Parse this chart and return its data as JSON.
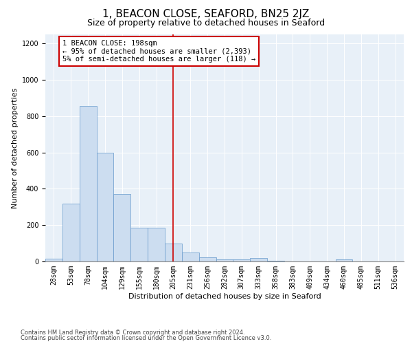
{
  "title": "1, BEACON CLOSE, SEAFORD, BN25 2JZ",
  "subtitle": "Size of property relative to detached houses in Seaford",
  "xlabel": "Distribution of detached houses by size in Seaford",
  "ylabel": "Number of detached properties",
  "bar_labels": [
    "28sqm",
    "53sqm",
    "78sqm",
    "104sqm",
    "129sqm",
    "155sqm",
    "180sqm",
    "205sqm",
    "231sqm",
    "256sqm",
    "282sqm",
    "307sqm",
    "333sqm",
    "358sqm",
    "383sqm",
    "409sqm",
    "434sqm",
    "460sqm",
    "485sqm",
    "511sqm",
    "536sqm"
  ],
  "bar_values": [
    15,
    320,
    855,
    600,
    370,
    185,
    185,
    100,
    50,
    22,
    13,
    13,
    18,
    5,
    0,
    0,
    0,
    12,
    0,
    0,
    0
  ],
  "bar_color": "#ccddf0",
  "bar_edge_color": "#6699cc",
  "vline_x_index": 7,
  "vline_color": "#cc0000",
  "annotation_text": "1 BEACON CLOSE: 198sqm\n← 95% of detached houses are smaller (2,393)\n5% of semi-detached houses are larger (118) →",
  "annotation_box_color": "#ffffff",
  "annotation_box_edge": "#cc0000",
  "ylim": [
    0,
    1250
  ],
  "yticks": [
    0,
    200,
    400,
    600,
    800,
    1000,
    1200
  ],
  "footnote1": "Contains HM Land Registry data © Crown copyright and database right 2024.",
  "footnote2": "Contains public sector information licensed under the Open Government Licence v3.0.",
  "bg_color": "#e8f0f8",
  "title_fontsize": 11,
  "subtitle_fontsize": 9,
  "xlabel_fontsize": 8,
  "ylabel_fontsize": 8,
  "tick_fontsize": 7,
  "annotation_fontsize": 7.5,
  "footnote_fontsize": 6
}
